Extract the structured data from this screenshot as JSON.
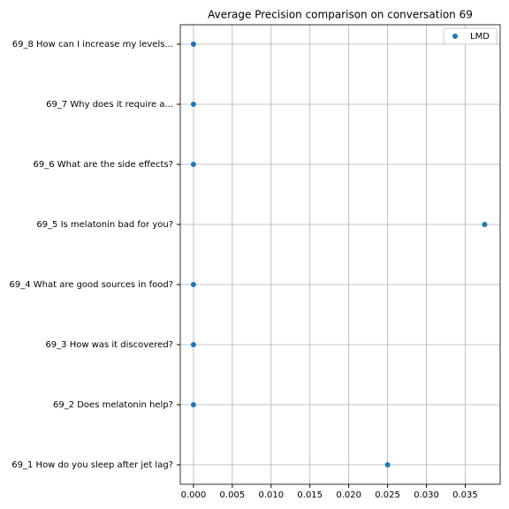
{
  "chart_data": {
    "type": "scatter",
    "title": "Average Precision comparison on conversation 69",
    "categories": [
      "69_1 How do you sleep after jet lag?",
      "69_2 Does melatonin help?",
      "69_3 How was it discovered?",
      "69_4 What are good sources in food?",
      "69_5 Is melatonin bad for you?",
      "69_6 What are the side effects?",
      "69_7 Why does it require a...",
      "69_8 How can I increase my levels..."
    ],
    "series": [
      {
        "name": "LMD",
        "color": "#1f77b4",
        "values": [
          0.025,
          0,
          0,
          0,
          0.0375,
          0,
          0,
          0
        ]
      }
    ],
    "xlim": [
      -0.0017,
      0.0395
    ],
    "xticks": [
      {
        "value": 0,
        "label": "0.000"
      },
      {
        "value": 0.005,
        "label": "0.005"
      },
      {
        "value": 0.01,
        "label": "0.010"
      },
      {
        "value": 0.015,
        "label": "0.015"
      },
      {
        "value": 0.02,
        "label": "0.020"
      },
      {
        "value": 0.025,
        "label": "0.025"
      },
      {
        "value": 0.03,
        "label": "0.030"
      },
      {
        "value": 0.035,
        "label": "0.035"
      }
    ],
    "grid": true,
    "legend": "upper right"
  }
}
